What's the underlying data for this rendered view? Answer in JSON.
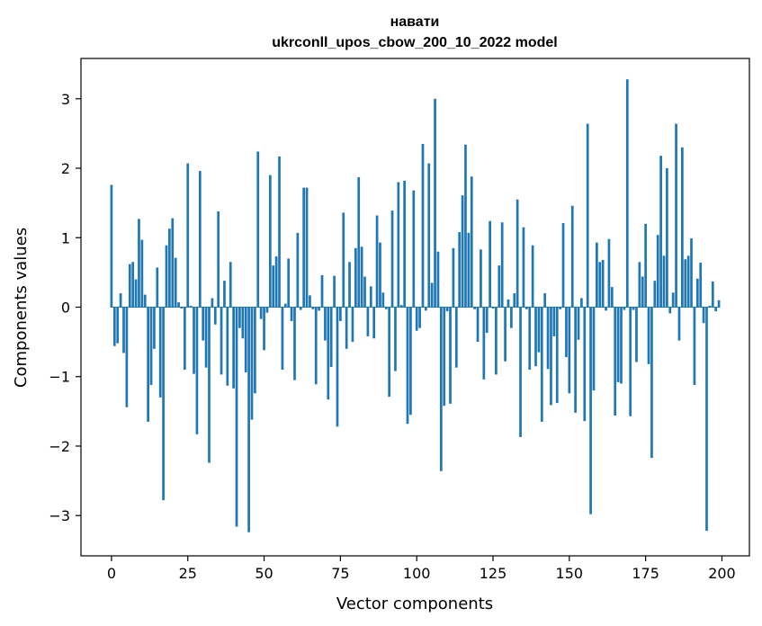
{
  "chart_data": {
    "type": "bar",
    "title": "навати",
    "subtitle": "ukrconll_upos_cbow_200_10_2022 model",
    "xlabel": "Vector components",
    "ylabel": "Components values",
    "xlim": [
      -10,
      209
    ],
    "ylim": [
      -3.58,
      3.58
    ],
    "xticks": [
      0,
      25,
      50,
      75,
      100,
      125,
      150,
      175,
      200
    ],
    "yticks": [
      -3,
      -2,
      -1,
      0,
      1,
      2,
      3
    ],
    "grid": false,
    "bar_color": "#1f77b4",
    "x": [
      0,
      1,
      2,
      3,
      4,
      5,
      6,
      7,
      8,
      9,
      10,
      11,
      12,
      13,
      14,
      15,
      16,
      17,
      18,
      19,
      20,
      21,
      22,
      23,
      24,
      25,
      26,
      27,
      28,
      29,
      30,
      31,
      32,
      33,
      34,
      35,
      36,
      37,
      38,
      39,
      40,
      41,
      42,
      43,
      44,
      45,
      46,
      47,
      48,
      49,
      50,
      51,
      52,
      53,
      54,
      55,
      56,
      57,
      58,
      59,
      60,
      61,
      62,
      63,
      64,
      65,
      66,
      67,
      68,
      69,
      70,
      71,
      72,
      73,
      74,
      75,
      76,
      77,
      78,
      79,
      80,
      81,
      82,
      83,
      84,
      85,
      86,
      87,
      88,
      89,
      90,
      91,
      92,
      93,
      94,
      95,
      96,
      97,
      98,
      99,
      100,
      101,
      102,
      103,
      104,
      105,
      106,
      107,
      108,
      109,
      110,
      111,
      112,
      113,
      114,
      115,
      116,
      117,
      118,
      119,
      120,
      121,
      122,
      123,
      124,
      125,
      126,
      127,
      128,
      129,
      130,
      131,
      132,
      133,
      134,
      135,
      136,
      137,
      138,
      139,
      140,
      141,
      142,
      143,
      144,
      145,
      146,
      147,
      148,
      149,
      150,
      151,
      152,
      153,
      154,
      155,
      156,
      157,
      158,
      159,
      160,
      161,
      162,
      163,
      164,
      165,
      166,
      167,
      168,
      169,
      170,
      171,
      172,
      173,
      174,
      175,
      176,
      177,
      178,
      179,
      180,
      181,
      182,
      183,
      184,
      185,
      186,
      187,
      188,
      189,
      190,
      191,
      192,
      193,
      194,
      195,
      196,
      197,
      198,
      199
    ],
    "values": [
      1.76,
      -0.56,
      -0.52,
      0.2,
      -0.66,
      -1.44,
      0.62,
      0.65,
      0.4,
      1.27,
      0.97,
      0.18,
      -1.65,
      -1.12,
      -0.6,
      0.57,
      -1.3,
      -2.78,
      0.89,
      1.13,
      1.28,
      0.71,
      0.07,
      -0.02,
      -0.9,
      2.07,
      0.02,
      -0.96,
      -1.83,
      1.96,
      -0.48,
      -0.87,
      -2.24,
      0.13,
      -0.25,
      1.38,
      -0.97,
      0.38,
      -1.13,
      0.65,
      -1.17,
      -3.16,
      -0.3,
      -0.45,
      -0.94,
      -3.24,
      -1.62,
      -1.24,
      2.24,
      -0.17,
      -0.62,
      -0.08,
      1.9,
      0.6,
      0.73,
      2.17,
      -0.9,
      0.05,
      0.7,
      -0.2,
      -1.05,
      1.07,
      -0.04,
      1.72,
      1.72,
      0.17,
      -0.03,
      -1.11,
      -0.05,
      0.46,
      -0.48,
      -1.33,
      -0.86,
      0.45,
      -1.72,
      -0.2,
      1.36,
      -0.6,
      0.65,
      -0.5,
      0.85,
      1.87,
      0.87,
      0.44,
      -0.42,
      0.3,
      -0.45,
      1.32,
      0.93,
      0.21,
      -0.03,
      -1.29,
      1.39,
      -0.92,
      1.8,
      0.03,
      1.82,
      -1.68,
      -1.55,
      1.68,
      -0.34,
      -0.3,
      2.35,
      -0.05,
      2.07,
      0.35,
      3.0,
      0.8,
      -2.36,
      -1.42,
      -0.06,
      -1.39,
      0.85,
      -0.87,
      1.08,
      1.61,
      2.34,
      1.07,
      1.88,
      -0.03,
      -0.5,
      0.83,
      -1.04,
      -0.37,
      1.24,
      -0.02,
      -0.97,
      0.6,
      1.22,
      -0.78,
      0.11,
      -0.3,
      0.2,
      1.55,
      -1.87,
      1.15,
      -0.03,
      -0.9,
      0.89,
      -0.85,
      -0.65,
      -1.65,
      0.2,
      -0.89,
      -1.41,
      -0.42,
      -1.38,
      -0.03,
      1.21,
      -0.72,
      -1.24,
      1.46,
      -1.52,
      -0.47,
      0.13,
      -1.64,
      2.64,
      -2.98,
      -1.2,
      0.93,
      0.65,
      0.68,
      -0.05,
      0.98,
      0.29,
      -1.56,
      -1.08,
      -1.1,
      -0.04,
      3.28,
      -1.57,
      -0.04,
      -0.79,
      0.65,
      0.44,
      1.2,
      -0.82,
      -2.17,
      0.38,
      1.04,
      2.18,
      0.74,
      2.0,
      -0.09,
      0.21,
      2.64,
      -0.48,
      2.3,
      0.69,
      0.74,
      0.99,
      -1.12,
      0.41,
      0.64,
      -0.23,
      -3.22,
      0.02,
      0.37,
      -0.06,
      0.1
    ]
  }
}
